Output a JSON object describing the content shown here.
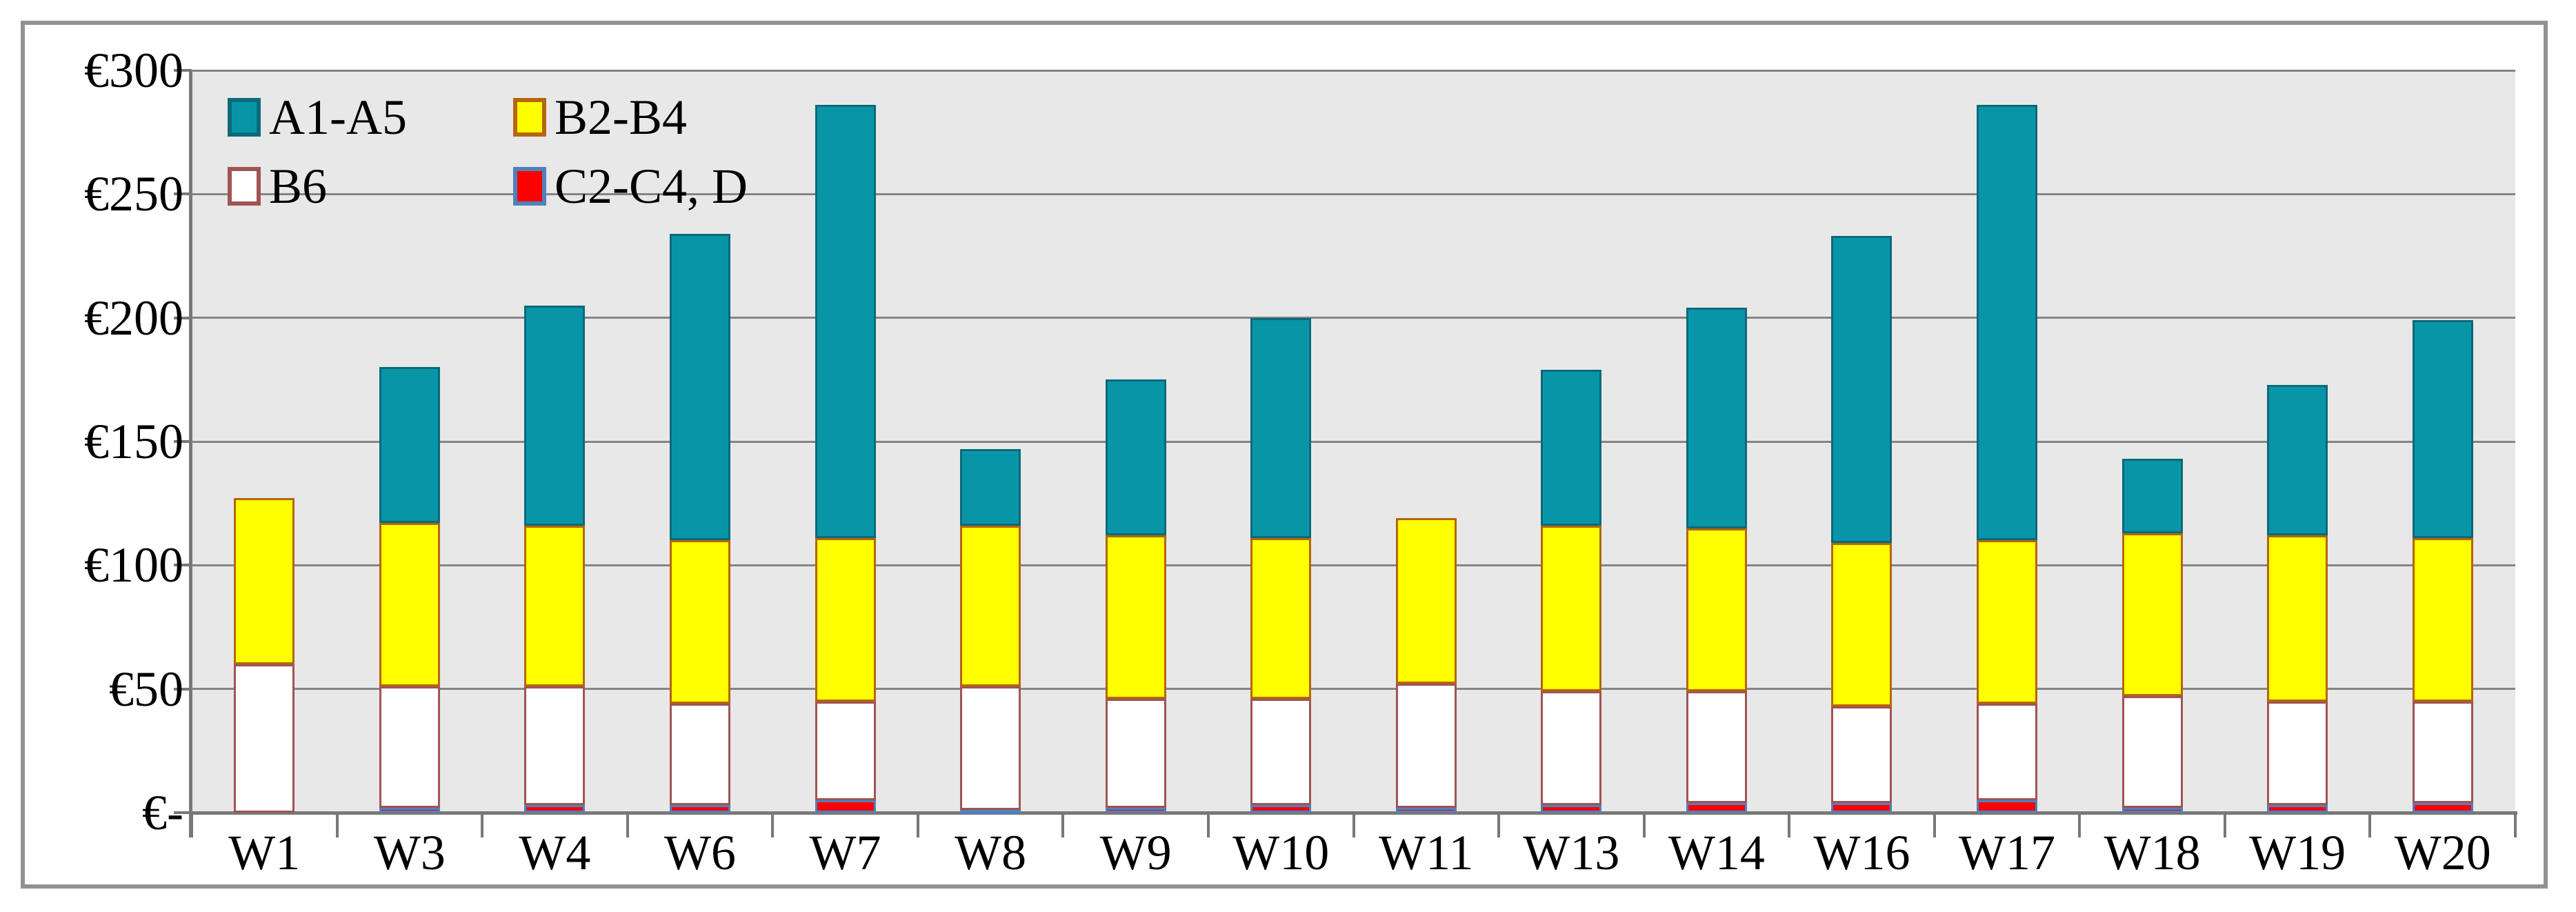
{
  "chart_data": {
    "type": "bar",
    "stacked": true,
    "title": "",
    "xlabel": "",
    "ylabel": "",
    "categories": [
      "W1",
      "W3",
      "W4",
      "W6",
      "W7",
      "W8",
      "W9",
      "W10",
      "W11",
      "W13",
      "W14",
      "W16",
      "W17",
      "W18",
      "W19",
      "W20"
    ],
    "series": [
      {
        "name": "C2-C4, D",
        "fill": "#ff0000",
        "border": "#4f81bd",
        "values": [
          0,
          2,
          3,
          3,
          5,
          1,
          2,
          3,
          2,
          3,
          4,
          4,
          5,
          2,
          3,
          4
        ]
      },
      {
        "name": "B6",
        "fill": "#ffffff",
        "border": "#a05454",
        "values": [
          60,
          49,
          48,
          41,
          40,
          50,
          44,
          43,
          50,
          46,
          45,
          39,
          39,
          45,
          42,
          41
        ]
      },
      {
        "name": "B2-B4",
        "fill": "#ffff00",
        "border": "#b5650f",
        "values": [
          67,
          66,
          65,
          66,
          66,
          65,
          66,
          65,
          67,
          67,
          66,
          66,
          66,
          66,
          67,
          66
        ]
      },
      {
        "name": "A1-A5",
        "fill": "#0995a8",
        "border": "#0b6a7a",
        "values": [
          0,
          63,
          89,
          124,
          175,
          31,
          63,
          89,
          0,
          63,
          89,
          124,
          176,
          30,
          61,
          88
        ]
      }
    ],
    "totals": [
      127,
      180,
      205,
      234,
      286,
      147,
      175,
      200,
      119,
      179,
      204,
      233,
      286,
      143,
      173,
      199
    ],
    "y_axis": {
      "ylim": [
        0,
        300
      ],
      "tick_interval": 50,
      "ticks": [
        {
          "value": 300,
          "label": "€300"
        },
        {
          "value": 250,
          "label": "€250"
        },
        {
          "value": 200,
          "label": "€200"
        },
        {
          "value": 150,
          "label": "€150"
        },
        {
          "value": 100,
          "label": "€100"
        },
        {
          "value": 50,
          "label": "€50"
        },
        {
          "value": 0,
          "label": "€-"
        }
      ]
    },
    "legend": {
      "position": "top-left",
      "rows": [
        [
          "A1-A5",
          "B2-B4"
        ],
        [
          "B6",
          "C2-C4, D"
        ]
      ]
    },
    "style": {
      "plot_bg": "#e8e8e8",
      "gridline_color": "#848484",
      "axis_color": "#787878",
      "frame_color": "#919191",
      "text_color": "#000000",
      "grid": true
    }
  }
}
